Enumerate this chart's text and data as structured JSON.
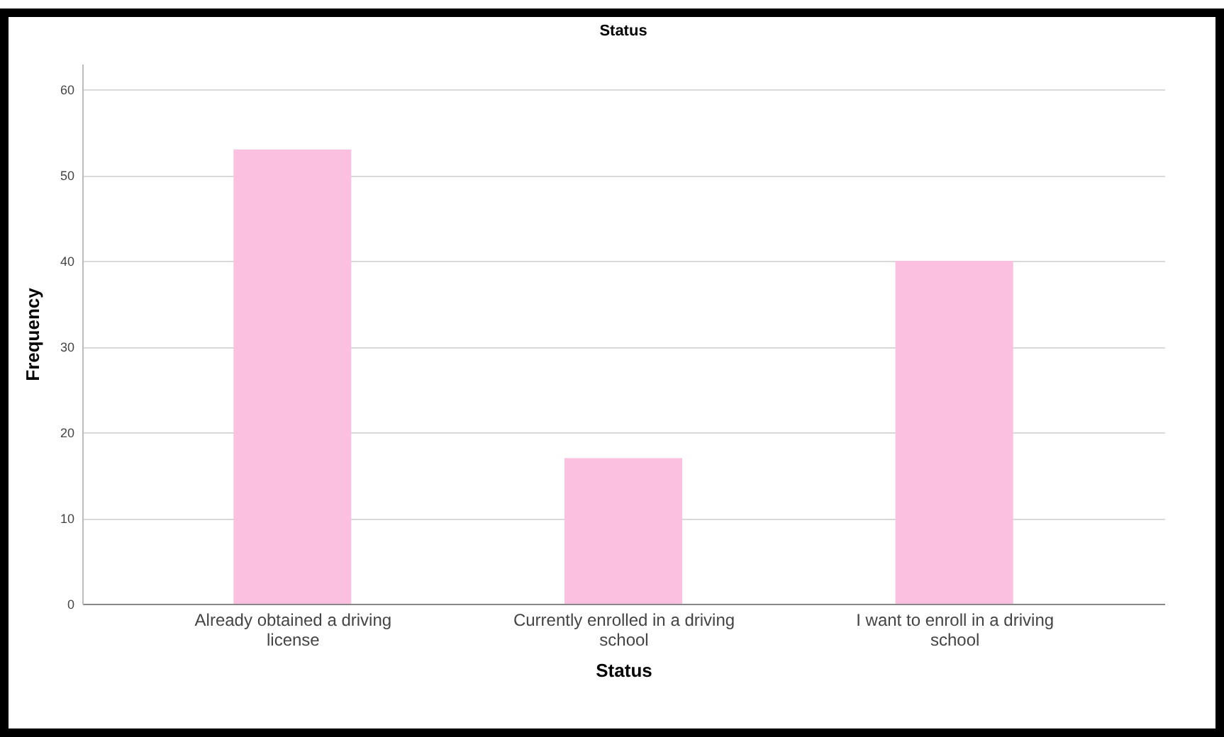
{
  "chart_data": {
    "type": "bar",
    "title": "Status",
    "xlabel": "Status",
    "ylabel": "Frequency",
    "categories": [
      "Already obtained a driving license",
      "Currently enrolled in a driving school",
      "I want to enroll in a driving school"
    ],
    "values": [
      53,
      17,
      40
    ],
    "color": "#fbbfe0",
    "ylim": [
      0,
      63
    ],
    "yticks": [
      0,
      10,
      20,
      30,
      40,
      50,
      60
    ],
    "grid": "y"
  }
}
